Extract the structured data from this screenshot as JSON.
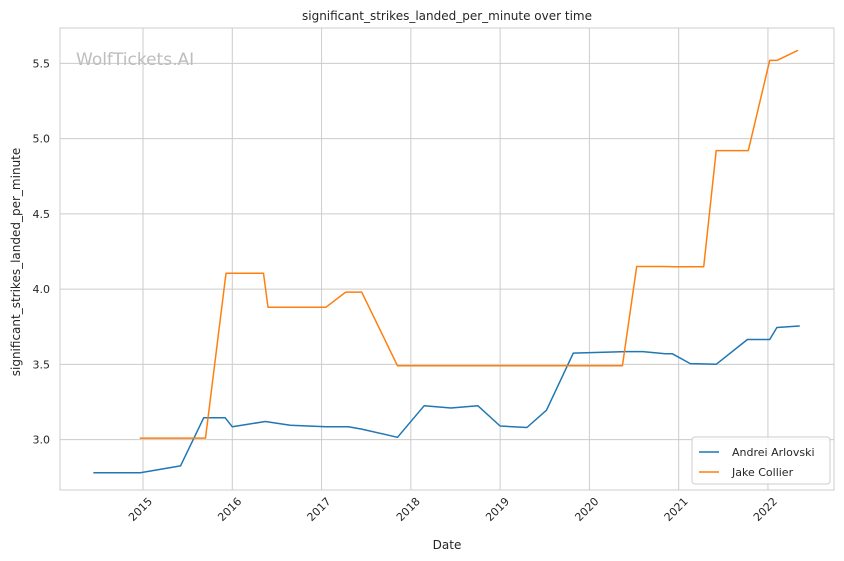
{
  "chart_data": {
    "type": "line",
    "title": "significant_strikes_landed_per_minute over time",
    "xlabel": "Date",
    "ylabel": "significant_strikes_landed_per_minute",
    "watermark": "WolfTickets.AI",
    "xlim": [
      2014.07,
      2022.74
    ],
    "ylim": [
      2.665,
      5.735
    ],
    "x_ticks": [
      2015,
      2016,
      2017,
      2018,
      2019,
      2020,
      2021,
      2022
    ],
    "x_tick_labels": [
      "2015",
      "2016",
      "2017",
      "2018",
      "2019",
      "2020",
      "2021",
      "2022"
    ],
    "y_ticks": [
      3.0,
      3.5,
      4.0,
      4.5,
      5.0,
      5.5
    ],
    "y_tick_labels": [
      "3.0",
      "3.5",
      "4.0",
      "4.5",
      "5.0",
      "5.5"
    ],
    "grid": true,
    "legend_position": "lower-right",
    "series": [
      {
        "name": "Andrei Arlovski",
        "color": "#1f77b4",
        "points": [
          [
            2014.45,
            2.78
          ],
          [
            2014.97,
            2.78
          ],
          [
            2015.42,
            2.825
          ],
          [
            2015.68,
            3.145
          ],
          [
            2015.92,
            3.145
          ],
          [
            2016.0,
            3.085
          ],
          [
            2016.37,
            3.12
          ],
          [
            2016.65,
            3.095
          ],
          [
            2017.05,
            3.085
          ],
          [
            2017.3,
            3.085
          ],
          [
            2017.45,
            3.07
          ],
          [
            2017.85,
            3.015
          ],
          [
            2018.15,
            3.225
          ],
          [
            2018.45,
            3.21
          ],
          [
            2018.75,
            3.225
          ],
          [
            2019.0,
            3.09
          ],
          [
            2019.3,
            3.08
          ],
          [
            2019.52,
            3.195
          ],
          [
            2019.82,
            3.575
          ],
          [
            2020.4,
            3.585
          ],
          [
            2020.6,
            3.585
          ],
          [
            2020.85,
            3.57
          ],
          [
            2020.93,
            3.57
          ],
          [
            2021.13,
            3.505
          ],
          [
            2021.42,
            3.5
          ],
          [
            2021.77,
            3.665
          ],
          [
            2022.02,
            3.665
          ],
          [
            2022.1,
            3.745
          ],
          [
            2022.35,
            3.755
          ]
        ]
      },
      {
        "name": "Jake Collier",
        "color": "#ff7f0e",
        "points": [
          [
            2014.97,
            3.01
          ],
          [
            2015.7,
            3.01
          ],
          [
            2015.93,
            4.105
          ],
          [
            2016.35,
            4.105
          ],
          [
            2016.4,
            3.88
          ],
          [
            2017.05,
            3.88
          ],
          [
            2017.27,
            3.98
          ],
          [
            2017.45,
            3.98
          ],
          [
            2017.85,
            3.49
          ],
          [
            2020.37,
            3.49
          ],
          [
            2020.53,
            4.15
          ],
          [
            2020.83,
            4.15
          ],
          [
            2020.95,
            4.148
          ],
          [
            2021.28,
            4.148
          ],
          [
            2021.42,
            4.92
          ],
          [
            2021.78,
            4.92
          ],
          [
            2022.02,
            5.52
          ],
          [
            2022.1,
            5.52
          ],
          [
            2022.33,
            5.585
          ]
        ]
      }
    ]
  }
}
